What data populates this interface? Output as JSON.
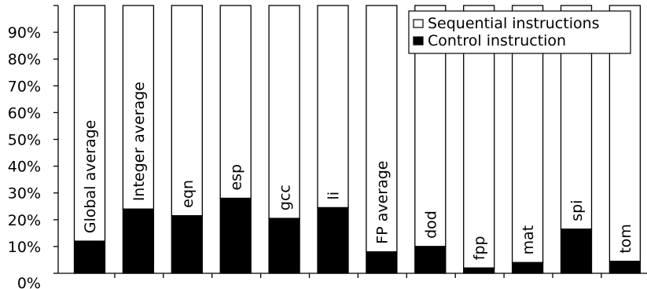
{
  "chart_data": {
    "type": "bar",
    "stacked": true,
    "normalized": true,
    "categories": [
      "Global average",
      "Integer average",
      "eqn",
      "esp",
      "gcc",
      "li",
      "FP average",
      "dod",
      "fpp",
      "mat",
      "spi",
      "tom"
    ],
    "series": [
      {
        "name": "Control instruction",
        "color": "#000000",
        "values": [
          12,
          24,
          21.5,
          28,
          20.5,
          24.5,
          8,
          10,
          2,
          4,
          16.5,
          4.5
        ]
      },
      {
        "name": "Sequential instructions",
        "color": "#ffffff",
        "values": [
          88,
          76,
          78.5,
          72,
          79.5,
          75.5,
          92,
          90,
          98,
          96,
          83.5,
          95.5
        ]
      }
    ],
    "yticks": [
      "0%",
      "10%",
      "20%",
      "30%",
      "40%",
      "50%",
      "60%",
      "70%",
      "80%",
      "90%"
    ],
    "ylim": [
      0,
      100
    ],
    "legend": {
      "position": "top-right"
    },
    "grid": false
  }
}
